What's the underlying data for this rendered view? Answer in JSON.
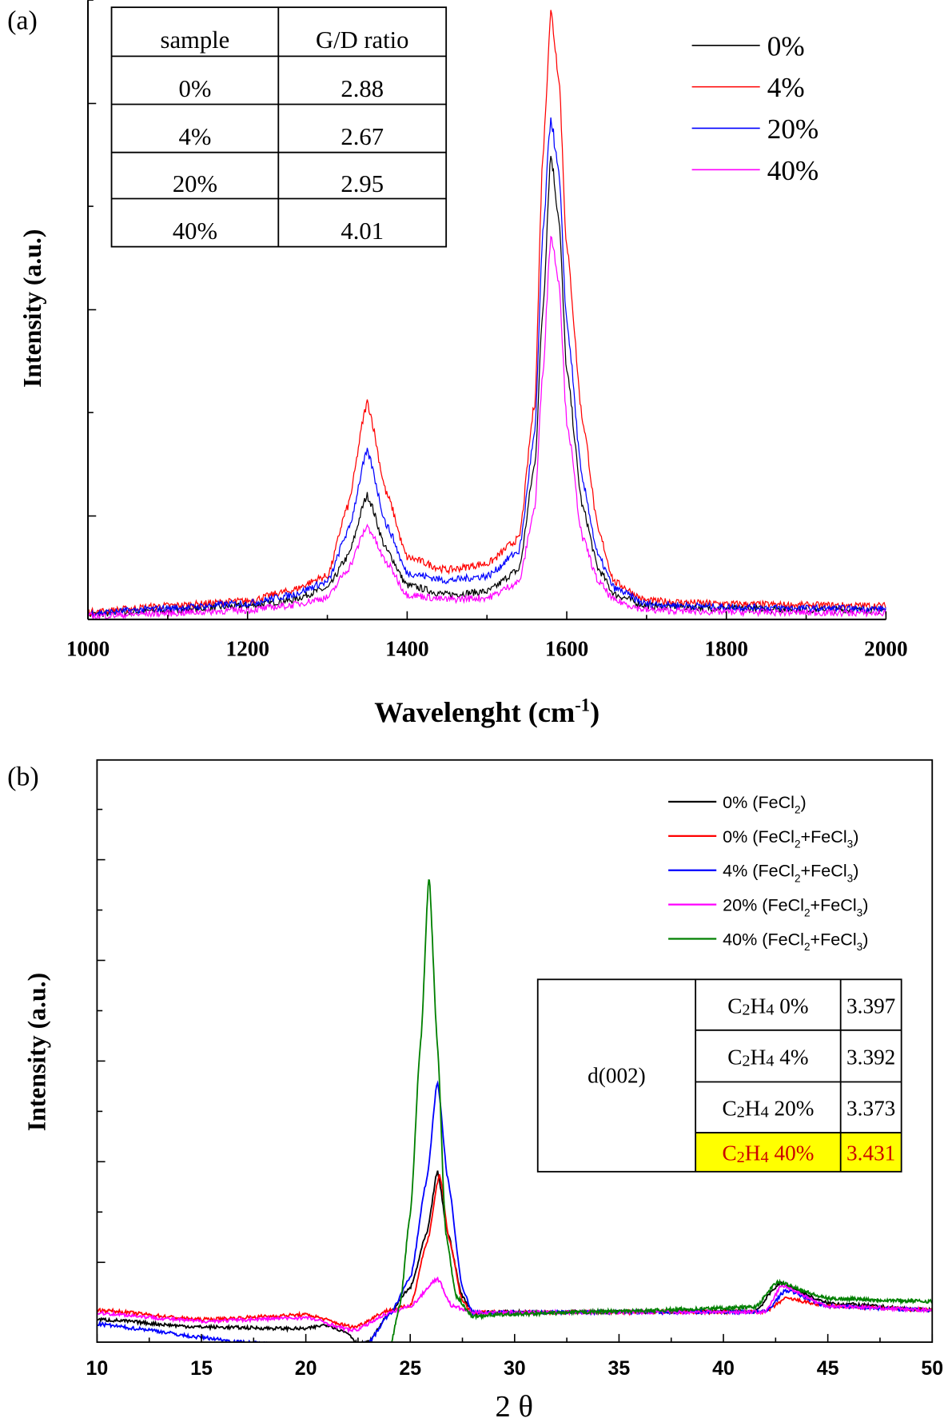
{
  "chart_data": [
    {
      "panel_label": "(a)",
      "type": "line",
      "xlabel": "Wavelenght (cm",
      "xlabel_superscript": "-1",
      "xlabel_suffix": ")",
      "ylabel": "Intensity (a.u.)",
      "xlim": [
        1000,
        2000
      ],
      "ylim": [
        0,
        100
      ],
      "x_tick_labels": [
        "1000",
        "1200",
        "1400",
        "1600",
        "1800",
        "2000"
      ],
      "y_tick_labels": [],
      "grid": false,
      "legend_position": "top-right",
      "x": [
        1000,
        1100,
        1200,
        1250,
        1300,
        1325,
        1350,
        1375,
        1400,
        1450,
        1500,
        1540,
        1560,
        1570,
        1580,
        1590,
        1600,
        1620,
        1640,
        1660,
        1700,
        1800,
        1900,
        2000
      ],
      "series": [
        {
          "name": "0%",
          "color": "#000000",
          "values": [
            0.8,
            1.5,
            2.2,
            3,
            5,
            10,
            20,
            11,
            5.5,
            4,
            4.5,
            8,
            25,
            50,
            75,
            65,
            40,
            18,
            8,
            4,
            2.2,
            1.8,
            1.6,
            1.5
          ]
        },
        {
          "name": "4%",
          "color": "#ff0000",
          "values": [
            1.2,
            2.2,
            3,
            4.5,
            7,
            18,
            35,
            20,
            10,
            8,
            9,
            13,
            35,
            75,
            98,
            88,
            60,
            32,
            14,
            6,
            3,
            2.5,
            2.3,
            2.2
          ]
        },
        {
          "name": "20%",
          "color": "#0000ff",
          "values": [
            1,
            1.8,
            2.6,
            3.8,
            6,
            14,
            27,
            15,
            7.5,
            6.3,
            7,
            11,
            30,
            62,
            81,
            72,
            48,
            22,
            10,
            5,
            2.5,
            2,
            1.8,
            1.7
          ]
        },
        {
          "name": "40%",
          "color": "#ff00ff",
          "values": [
            0.5,
            1,
            1.5,
            2.2,
            3.5,
            8,
            15,
            9,
            4,
            3.2,
            3.5,
            6,
            18,
            40,
            62,
            55,
            32,
            13,
            6,
            3,
            1.5,
            1.2,
            1.1,
            1
          ]
        }
      ],
      "inset_table": {
        "headers": [
          "sample",
          "G/D ratio"
        ],
        "rows": [
          [
            "0%",
            "2.88"
          ],
          [
            "4%",
            "2.67"
          ],
          [
            "20%",
            "2.95"
          ],
          [
            "40%",
            "4.01"
          ]
        ]
      }
    },
    {
      "panel_label": "(b)",
      "type": "line",
      "xlabel": "2 θ",
      "ylabel": "Intensity (a.u.)",
      "xlim": [
        10,
        50
      ],
      "ylim": [
        0,
        100
      ],
      "x_tick_labels": [
        "10",
        "15",
        "20",
        "25",
        "30",
        "35",
        "40",
        "45",
        "50"
      ],
      "y_tick_labels": [],
      "grid": false,
      "legend_position": "top-right",
      "series": [
        {
          "name": "0% (FeCl2)",
          "legend_parts": [
            "0% (FeCl",
            "2",
            ")"
          ],
          "color": "#000000",
          "x": [
            10,
            15,
            20,
            21,
            22,
            22.5,
            23,
            24,
            25,
            25.8,
            26.3,
            26.8,
            27.5,
            28,
            41.5,
            42.7,
            45,
            50
          ],
          "values": [
            3.9,
            2.6,
            2.3,
            3,
            1.6,
            -0.3,
            0,
            5,
            9.3,
            18.7,
            29.3,
            18.7,
            7.8,
            5.1,
            5.3,
            10.1,
            6.7,
            5.5
          ]
        },
        {
          "name": "0% (FeCl2+FeCl3)",
          "legend_parts": [
            "0% (FeCl",
            "2",
            "+FeCl",
            "3",
            ")"
          ],
          "color": "#ff0000",
          "x": [
            10,
            15,
            20,
            22.3,
            24,
            25,
            25.8,
            26.4,
            26.9,
            27.5,
            28,
            42,
            43,
            45,
            50
          ],
          "values": [
            5.5,
            3.9,
            4.7,
            2.6,
            5.5,
            6.2,
            17,
            28.8,
            17,
            7,
            5.1,
            5.2,
            7.5,
            6.2,
            5.5
          ]
        },
        {
          "name": "4% (FeCl2+FeCl3)",
          "legend_parts": [
            "4% (FeCl",
            "2",
            "+FeCl",
            "3",
            ")"
          ],
          "color": "#0000ff",
          "x": [
            10,
            12,
            15,
            17,
            20,
            22,
            23,
            24,
            25,
            25.8,
            26.3,
            26.8,
            27.5,
            28,
            42,
            43,
            45,
            50
          ],
          "values": [
            3.1,
            2.3,
            0.8,
            0,
            -0.8,
            -1.5,
            0,
            4.7,
            10.9,
            28,
            44.9,
            28,
            9.3,
            5.1,
            5.2,
            8.9,
            6.2,
            5.5
          ]
        },
        {
          "name": "20% (FeCl2+FeCl3)",
          "legend_parts": [
            "20% (FeCl",
            "2",
            "+FeCl",
            "3",
            ")"
          ],
          "color": "#ff00ff",
          "x": [
            10,
            15,
            20,
            22.3,
            24,
            25,
            26.3,
            27,
            28,
            42,
            42.8,
            45,
            50
          ],
          "values": [
            5,
            3.6,
            4.2,
            2,
            5,
            6.2,
            10.9,
            6.2,
            5.1,
            5.2,
            9.7,
            6.2,
            5.5
          ]
        },
        {
          "name": "40% (FeCl2+FeCl3)",
          "legend_parts": [
            "40% (FeCl",
            "2",
            "+FeCl",
            "3",
            ")"
          ],
          "color": "#008000",
          "x": [
            23.5,
            24,
            24.5,
            25,
            25.5,
            25.9,
            26.3,
            26.7,
            27.2,
            28,
            29,
            35,
            41.5,
            42.6,
            45,
            50
          ],
          "values": [
            -6,
            -1.5,
            6.2,
            21.8,
            51.4,
            80.2,
            51.4,
            18.7,
            7.8,
            4.4,
            4.7,
            5.3,
            6,
            10.3,
            7.5,
            7
          ]
        }
      ],
      "inset_table": {
        "row_header": "d(002)",
        "rows": [
          {
            "sample": [
              "C",
              "2",
              "H",
              "4",
              " 0%"
            ],
            "value": "3.397",
            "highlighted": false
          },
          {
            "sample": [
              "C",
              "2",
              "H",
              "4",
              " 4%"
            ],
            "value": "3.392",
            "highlighted": false
          },
          {
            "sample": [
              "C",
              "2",
              "H",
              "4",
              " 20%"
            ],
            "value": "3.373",
            "highlighted": false
          },
          {
            "sample": [
              "C",
              "2",
              "H",
              "4",
              " 40%"
            ],
            "value": "3.431",
            "highlighted": true
          }
        ],
        "highlight_fill": "#ffff00",
        "highlight_text_color": "#cc0000"
      }
    }
  ]
}
